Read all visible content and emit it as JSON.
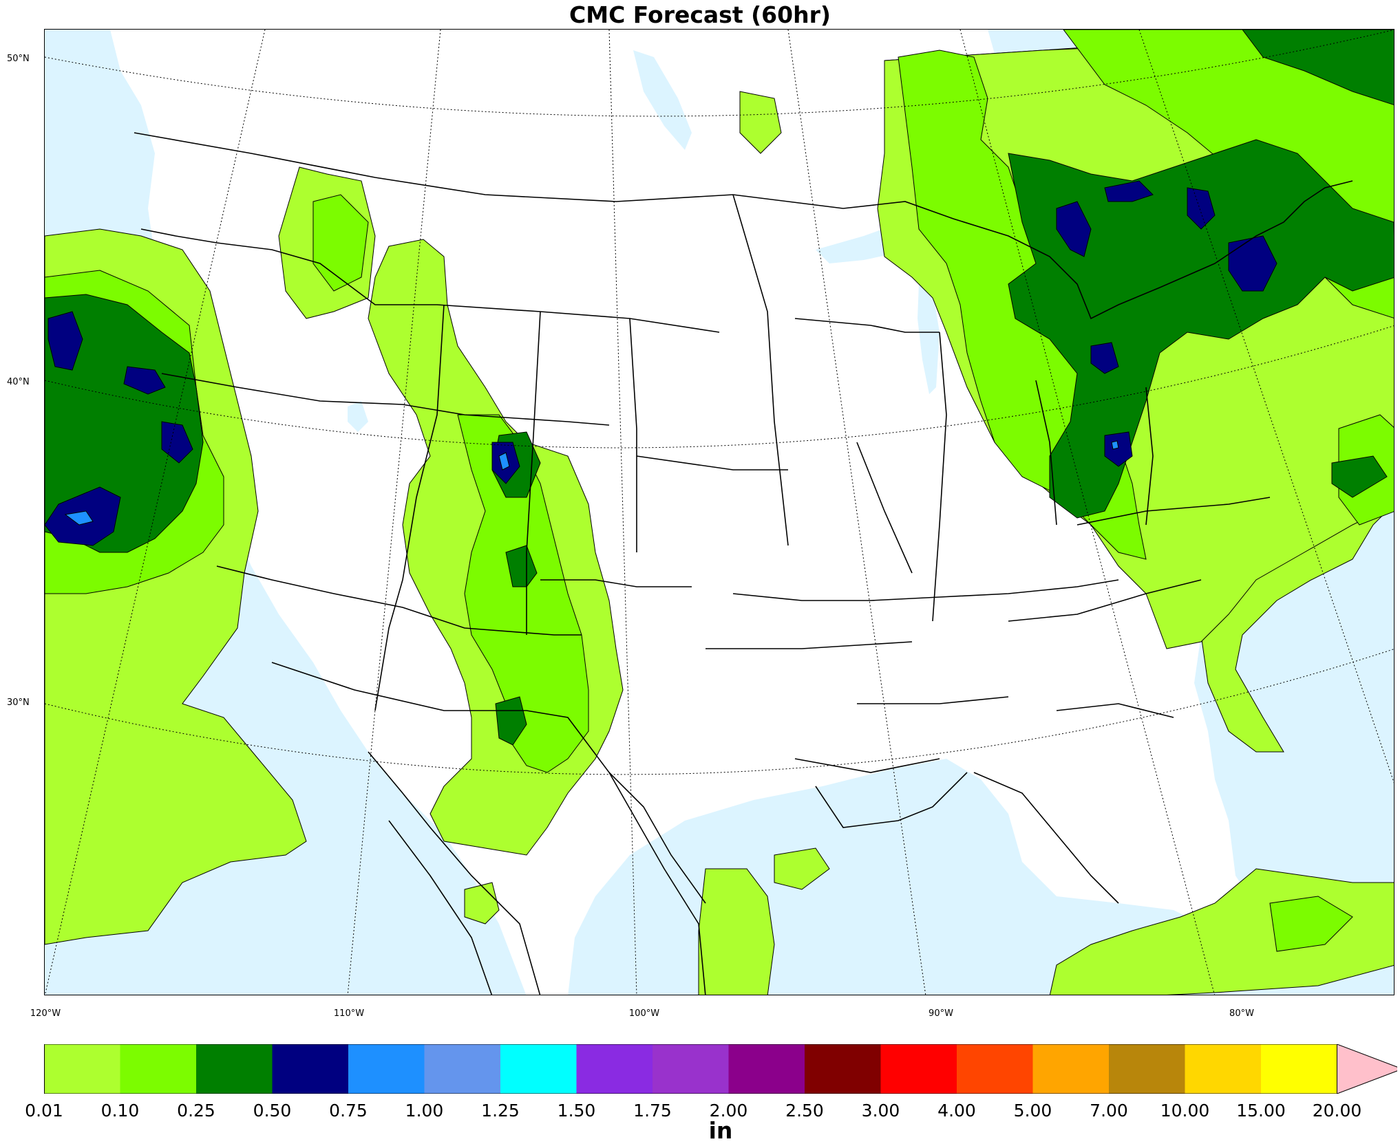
{
  "title": "CMC Forecast (60hr)",
  "units": "in",
  "colorbar": {
    "bins": [
      {
        "lower": "0.01",
        "color": "#adff2f"
      },
      {
        "lower": "0.10",
        "color": "#7cfc00"
      },
      {
        "lower": "0.25",
        "color": "#007f00"
      },
      {
        "lower": "0.50",
        "color": "#000080"
      },
      {
        "lower": "0.75",
        "color": "#1e90ff"
      },
      {
        "lower": "1.00",
        "color": "#6495ed"
      },
      {
        "lower": "1.25",
        "color": "#00ffff"
      },
      {
        "lower": "1.50",
        "color": "#8a2be2"
      },
      {
        "lower": "1.75",
        "color": "#9932cc"
      },
      {
        "lower": "2.00",
        "color": "#8b008b"
      },
      {
        "lower": "2.50",
        "color": "#800000"
      },
      {
        "lower": "3.00",
        "color": "#ff0000"
      },
      {
        "lower": "4.00",
        "color": "#ff4500"
      },
      {
        "lower": "5.00",
        "color": "#ffa500"
      },
      {
        "lower": "7.00",
        "color": "#b8860b"
      },
      {
        "lower": "10.00",
        "color": "#ffd700"
      },
      {
        "lower": "15.00",
        "color": "#ffff00"
      }
    ],
    "last_tick": "20.00",
    "extend_color": "#ffc0cb"
  },
  "latitude_labels": [
    "50°N",
    "40°N",
    "30°N"
  ],
  "longitude_labels": [
    "120°W",
    "110°W",
    "100°W",
    "90°W",
    "80°W"
  ],
  "water_color": "#dcf4ff"
}
